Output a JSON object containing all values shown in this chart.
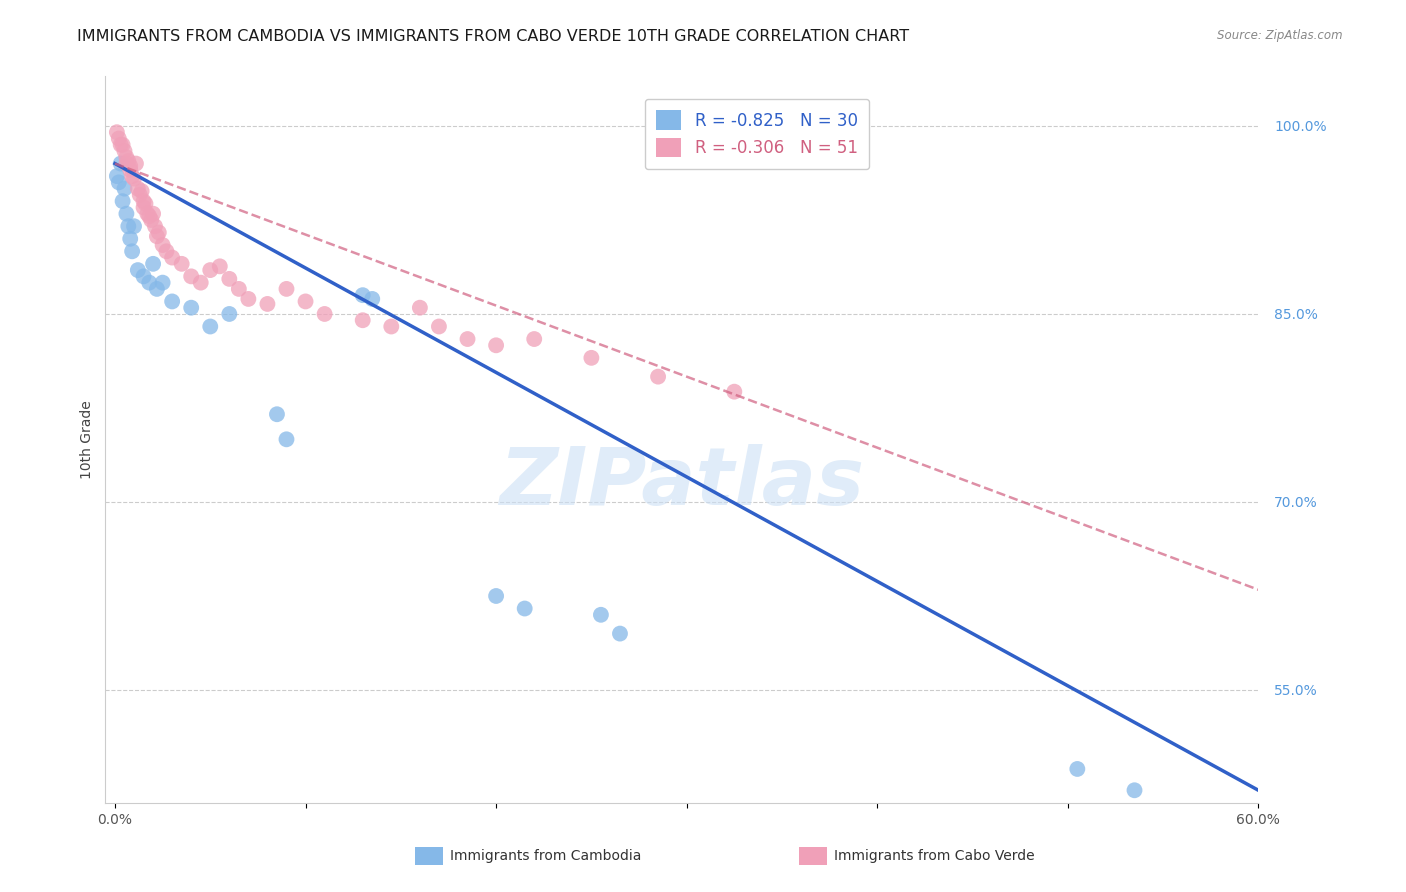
{
  "title": "IMMIGRANTS FROM CAMBODIA VS IMMIGRANTS FROM CABO VERDE 10TH GRADE CORRELATION CHART",
  "source": "Source: ZipAtlas.com",
  "ylabel": "10th Grade",
  "cambodia_color": "#85b8e8",
  "caboverde_color": "#f0a0b8",
  "cambodia_line_color": "#3060c8",
  "caboverde_line_color": "#d06080",
  "R_cambodia": -0.825,
  "N_cambodia": 30,
  "R_caboverde": -0.306,
  "N_caboverde": 51,
  "watermark": "ZIPatlas",
  "grid_color": "#cccccc",
  "background_color": "#ffffff",
  "title_fontsize": 11.5,
  "axis_label_fontsize": 10,
  "tick_label_fontsize": 10,
  "right_tick_color": "#5599dd",
  "legend_label_color_cam": "#3060c8",
  "legend_label_color_cv": "#d06080",
  "cam_x": [
    0.001,
    0.002,
    0.003,
    0.004,
    0.005,
    0.006,
    0.007,
    0.008,
    0.009,
    0.01,
    0.012,
    0.015,
    0.018,
    0.02,
    0.022,
    0.025,
    0.03,
    0.04,
    0.05,
    0.06,
    0.085,
    0.09,
    0.13,
    0.135,
    0.2,
    0.215,
    0.255,
    0.265,
    0.505,
    0.535
  ],
  "cam_y": [
    0.96,
    0.955,
    0.97,
    0.94,
    0.95,
    0.93,
    0.92,
    0.91,
    0.9,
    0.92,
    0.885,
    0.88,
    0.875,
    0.89,
    0.87,
    0.875,
    0.86,
    0.855,
    0.84,
    0.85,
    0.77,
    0.75,
    0.865,
    0.862,
    0.625,
    0.615,
    0.61,
    0.595,
    0.487,
    0.47
  ],
  "cv_x": [
    0.001,
    0.002,
    0.003,
    0.004,
    0.005,
    0.006,
    0.006,
    0.007,
    0.008,
    0.008,
    0.009,
    0.01,
    0.011,
    0.012,
    0.013,
    0.014,
    0.015,
    0.015,
    0.016,
    0.017,
    0.018,
    0.019,
    0.02,
    0.021,
    0.022,
    0.023,
    0.025,
    0.027,
    0.03,
    0.035,
    0.04,
    0.045,
    0.05,
    0.055,
    0.06,
    0.065,
    0.07,
    0.08,
    0.09,
    0.1,
    0.11,
    0.13,
    0.145,
    0.16,
    0.17,
    0.185,
    0.2,
    0.22,
    0.25,
    0.285,
    0.325
  ],
  "cv_y": [
    0.995,
    0.99,
    0.985,
    0.985,
    0.98,
    0.975,
    0.97,
    0.972,
    0.965,
    0.968,
    0.96,
    0.958,
    0.97,
    0.95,
    0.945,
    0.948,
    0.94,
    0.935,
    0.938,
    0.93,
    0.928,
    0.925,
    0.93,
    0.92,
    0.912,
    0.915,
    0.905,
    0.9,
    0.895,
    0.89,
    0.88,
    0.875,
    0.885,
    0.888,
    0.878,
    0.87,
    0.862,
    0.858,
    0.87,
    0.86,
    0.85,
    0.845,
    0.84,
    0.855,
    0.84,
    0.83,
    0.825,
    0.83,
    0.815,
    0.8,
    0.788
  ],
  "xlim_min": 0.0,
  "xlim_max": 0.6,
  "ylim_min": 0.46,
  "ylim_max": 1.04,
  "y_tick_values": [
    1.0,
    0.85,
    0.7,
    0.55
  ],
  "y_tick_labels": [
    "100.0%",
    "85.0%",
    "70.0%",
    "55.0%"
  ],
  "x_tick_positions": [
    0.0,
    0.1,
    0.2,
    0.3,
    0.4,
    0.5,
    0.6
  ],
  "x_tick_labels": [
    "0.0%",
    "",
    "",
    "",
    "",
    "",
    "60.0%"
  ],
  "bottom_legend_cam": "Immigrants from Cambodia",
  "bottom_legend_cv": "Immigrants from Cabo Verde"
}
